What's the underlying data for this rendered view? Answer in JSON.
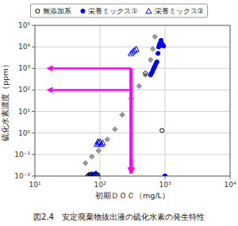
{
  "chart_data": {
    "type": "scatter",
    "title": "図2.4　安定廃棄物抜出液の硫化水素の発生特性",
    "x_label": "初期ＤＯＣ（mg/L）",
    "y_label": "硫化水素濃度（ppm）",
    "log": true,
    "grid": true,
    "legend": "top",
    "xlim": [
      10,
      10000
    ],
    "ylim": [
      0.01,
      100000
    ],
    "xticks": [
      {
        "value": 10,
        "label": "10¹"
      },
      {
        "value": 100,
        "label": "10²"
      },
      {
        "value": 1000,
        "label": "10³"
      },
      {
        "value": 10000,
        "label": "10⁴"
      }
    ],
    "yticks": [
      {
        "value": 0.01,
        "label": "10⁻²"
      },
      {
        "value": 0.1,
        "label": "10⁻¹"
      },
      {
        "value": 1,
        "label": "10⁰"
      },
      {
        "value": 10,
        "label": "10¹"
      },
      {
        "value": 100,
        "label": "10²"
      },
      {
        "value": 1000,
        "label": "10³"
      },
      {
        "value": 10000,
        "label": "10⁴"
      },
      {
        "value": 100000,
        "label": "10⁵"
      }
    ],
    "series": [
      {
        "name": "無添加系",
        "color": "#000000",
        "marker": "open-circle",
        "x": [
          65,
          68,
          70,
          72,
          75,
          78,
          80,
          83,
          86,
          90,
          93,
          900,
          1000
        ],
        "values": [
          0.01,
          0.011,
          0.012,
          0.011,
          0.01,
          0.012,
          0.011,
          0.012,
          0.011,
          0.012,
          0.011,
          1.3,
          0.01
        ]
      },
      {
        "name": "栄養ミックス①",
        "color": "#0000ff",
        "marker": "circle",
        "x": [
          600,
          620,
          640,
          660,
          680,
          700,
          720,
          750,
          780,
          800,
          820,
          850,
          870,
          900,
          920,
          950
        ],
        "values": [
          500,
          600,
          700,
          900,
          1100,
          1300,
          1600,
          2000,
          5000,
          10000,
          13000,
          16000,
          20000,
          14000,
          12000,
          11000
        ]
      },
      {
        "name": "栄養ミックス②",
        "color": "#0000ff",
        "marker": "open-triangle",
        "x": [
          75,
          80,
          83,
          87,
          90,
          93,
          96,
          100,
          105,
          110,
          300,
          320,
          340,
          360
        ],
        "values": [
          0.012,
          0.01,
          0.012,
          0.013,
          0.3,
          0.4,
          0.35,
          0.4,
          0.3,
          0.35,
          5000,
          6000,
          7000,
          8000
        ]
      },
      {
        "color": "#888888",
        "marker": "diamond",
        "x": [
          60,
          75,
          95,
          130,
          170,
          220,
          300,
          400,
          500,
          600,
          650,
          700
        ],
        "values": [
          0.04,
          0.08,
          0.15,
          0.5,
          1.5,
          7,
          40,
          150,
          500,
          2500,
          8000,
          30000
        ]
      },
      {
        "color": "#000000",
        "marker": "open-diamond",
        "x": [
          500
        ],
        "values": [
          600
        ]
      },
      {
        "color": "#0000ff",
        "marker": "circle",
        "x": [
          1000
        ],
        "values": [
          0.01
        ]
      }
    ],
    "annotations": [
      {
        "type": "line",
        "color": "#ff00ff",
        "x": [
          300,
          300
        ],
        "y": [
          0.013,
          1000
        ]
      },
      {
        "type": "arrow",
        "color": "#ff00ff",
        "x": [
          295,
          295
        ],
        "y": [
          0.06,
          0.013
        ]
      },
      {
        "type": "arrow",
        "color": "#ff00ff",
        "x": [
          310,
          310
        ],
        "y": [
          0.06,
          0.013
        ]
      },
      {
        "type": "arrow",
        "color": "#ff00ff",
        "x": [
          300,
          15
        ],
        "y": [
          1000,
          1000
        ]
      },
      {
        "type": "arrow",
        "color": "#ff00ff",
        "x": [
          300,
          15
        ],
        "y": [
          100,
          100
        ]
      }
    ]
  }
}
